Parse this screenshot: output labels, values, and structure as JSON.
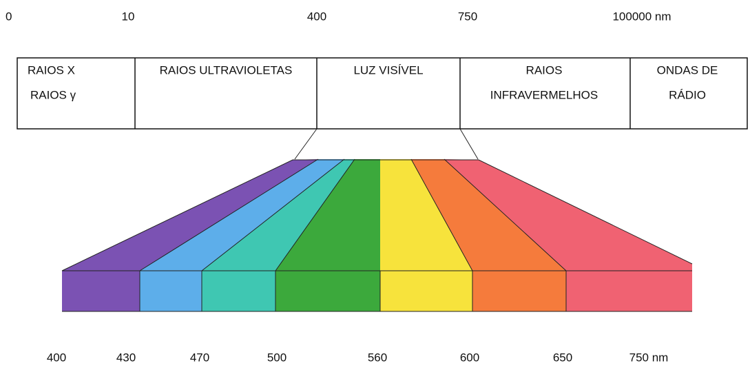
{
  "scale_top": [
    "0",
    "10",
    "400",
    "750",
    "100000 nm"
  ],
  "regions": [
    {
      "lines": [
        "RAIOS X",
        "RAIOS γ"
      ]
    },
    {
      "lines": [
        "RAIOS ULTRAVIOLETAS"
      ]
    },
    {
      "lines": [
        "LUZ VISÍVEL"
      ]
    },
    {
      "lines": [
        "RAIOS",
        "INFRAVERMELHOS"
      ]
    },
    {
      "lines": [
        "ONDAS DE",
        "RÁDIO"
      ]
    }
  ],
  "scale_bottom": [
    "400",
    "430",
    "470",
    "500",
    "560",
    "600",
    "650",
    "750 nm"
  ]
}
